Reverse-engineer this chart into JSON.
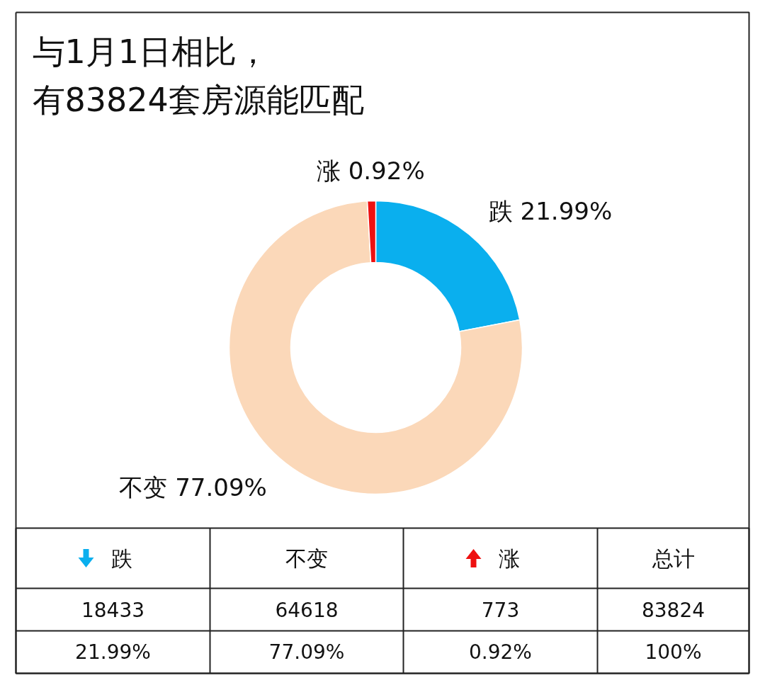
{
  "chart_data": [
    {
      "type": "donut",
      "title": "与1月1日相比，",
      "subtitle": "有83824套房源能匹配",
      "categories": [
        "跌",
        "不变",
        "涨"
      ],
      "values": [
        21.99,
        77.09,
        0.92
      ],
      "colors": [
        "#0aafee",
        "#fbd8b9",
        "#ee1111"
      ],
      "value_labels": [
        "跌 21.99%",
        "不变 77.09%",
        "涨 0.92%"
      ],
      "legend": "bottom"
    },
    {
      "type": "other",
      "annotations": [
        "总计",
        "18433",
        "64618",
        "773",
        "83824",
        "21.99%",
        "77.09%",
        "0.92%",
        "100%"
      ]
    }
  ]
}
